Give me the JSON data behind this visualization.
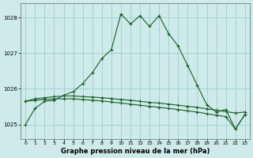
{
  "title": "Graphe pression niveau de la mer (hPa)",
  "bg_color": "#ceeaea",
  "grid_color": "#9ecece",
  "line_color": "#1a5c28",
  "xlim": [
    -0.5,
    23.5
  ],
  "ylim": [
    1024.6,
    1028.4
  ],
  "yticks": [
    1025,
    1026,
    1027,
    1028
  ],
  "xticks": [
    0,
    1,
    2,
    3,
    4,
    5,
    6,
    7,
    8,
    9,
    10,
    11,
    12,
    13,
    14,
    15,
    16,
    17,
    18,
    19,
    20,
    21,
    22,
    23
  ],
  "main_line": [
    1025.0,
    1025.45,
    1025.65,
    1025.68,
    1025.82,
    1025.92,
    1026.15,
    1026.45,
    1026.85,
    1027.1,
    1028.1,
    1027.82,
    1028.05,
    1027.75,
    1028.05,
    1027.55,
    1027.2,
    1026.65,
    1026.1,
    1025.55,
    1025.35,
    1025.42,
    1024.87,
    1025.28
  ],
  "upper_band": [
    1025.65,
    1025.72,
    1025.75,
    1025.78,
    1025.8,
    1025.8,
    1025.78,
    1025.77,
    1025.75,
    1025.73,
    1025.7,
    1025.68,
    1025.65,
    1025.62,
    1025.6,
    1025.57,
    1025.54,
    1025.51,
    1025.48,
    1025.44,
    1025.4,
    1025.36,
    1025.32,
    1025.35
  ],
  "lower_band": [
    1025.65,
    1025.68,
    1025.7,
    1025.72,
    1025.72,
    1025.72,
    1025.7,
    1025.68,
    1025.66,
    1025.63,
    1025.6,
    1025.57,
    1025.54,
    1025.51,
    1025.48,
    1025.45,
    1025.42,
    1025.38,
    1025.35,
    1025.3,
    1025.26,
    1025.22,
    1024.87,
    1025.28
  ]
}
